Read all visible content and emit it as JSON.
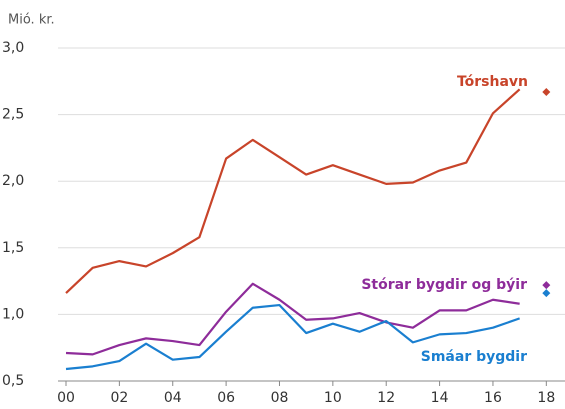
{
  "chart_data": {
    "type": "line",
    "y_unit": "Mió. kr.",
    "x": [
      0,
      1,
      2,
      3,
      4,
      5,
      6,
      7,
      8,
      9,
      10,
      11,
      12,
      13,
      14,
      15,
      16,
      17
    ],
    "xlim": [
      -0.3,
      18.7
    ],
    "xticks": [
      {
        "value": 0,
        "label": "00"
      },
      {
        "value": 2,
        "label": "02"
      },
      {
        "value": 4,
        "label": "04"
      },
      {
        "value": 6,
        "label": "06"
      },
      {
        "value": 8,
        "label": "08"
      },
      {
        "value": 10,
        "label": "10"
      },
      {
        "value": 12,
        "label": "12"
      },
      {
        "value": 14,
        "label": "14"
      },
      {
        "value": 16,
        "label": "16"
      },
      {
        "value": 18,
        "label": "18"
      }
    ],
    "ylim": [
      0.5,
      3.0
    ],
    "yticks": [
      {
        "value": 0.5,
        "label": "0,5"
      },
      {
        "value": 1.0,
        "label": "1,0"
      },
      {
        "value": 1.5,
        "label": "1,5"
      },
      {
        "value": 2.0,
        "label": "2,0"
      },
      {
        "value": 2.5,
        "label": "2,5"
      },
      {
        "value": 3.0,
        "label": "3,0"
      }
    ],
    "grid": true,
    "series": [
      {
        "name": "Tórshavn",
        "color": "#c8442a",
        "values": [
          1.16,
          1.35,
          1.4,
          1.36,
          1.46,
          1.58,
          2.17,
          2.31,
          2.18,
          2.05,
          2.12,
          2.05,
          1.98,
          1.99,
          2.08,
          2.14,
          2.51,
          2.69
        ],
        "point": {
          "x": 18,
          "value": 2.67
        }
      },
      {
        "name": "Stórar bygdir og býir",
        "color": "#8e2c9a",
        "values": [
          0.71,
          0.7,
          0.77,
          0.82,
          0.8,
          0.77,
          1.02,
          1.23,
          1.11,
          0.96,
          0.97,
          1.01,
          0.94,
          0.9,
          1.03,
          1.03,
          1.11,
          1.08
        ],
        "point": {
          "x": 18,
          "value": 1.22
        }
      },
      {
        "name": "Smáar bygdir",
        "color": "#1a7fd0",
        "values": [
          0.59,
          0.61,
          0.65,
          0.78,
          0.66,
          0.68,
          0.87,
          1.05,
          1.07,
          0.86,
          0.93,
          0.87,
          0.95,
          0.79,
          0.85,
          0.86,
          0.9,
          0.97
        ],
        "point": {
          "x": 18,
          "value": 1.16
        }
      }
    ]
  }
}
